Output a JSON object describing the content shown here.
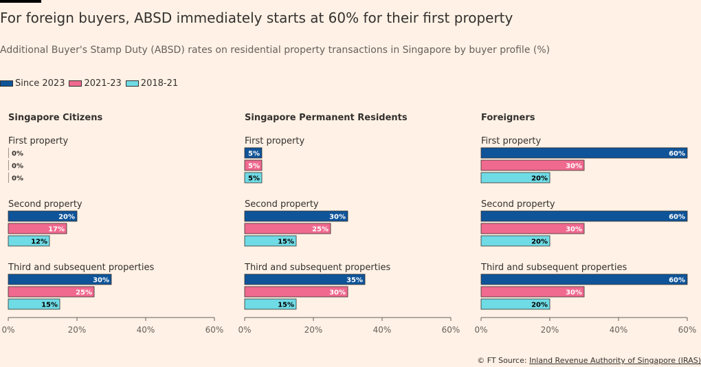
{
  "title": "For foreign buyers, ABSD immediately starts at 60% for their first property",
  "subtitle": "Additional Buyer's Stamp Duty (ABSD) rates on residential property transactions in Singapore by buyer profile (%)",
  "source": {
    "prefix": "© FT Source: ",
    "link_text": "Inland Revenue Authority of Singapore (IRAS)"
  },
  "colors": {
    "since_2023": "#0f5499",
    "y2021_23": "#f0698f",
    "y2018_21": "#6fdbe5",
    "axis": "#66605c",
    "background": "#fff1e5"
  },
  "chart_data": {
    "type": "bar",
    "orientation": "horizontal",
    "legend_position": "top-left",
    "xlim": [
      0,
      60
    ],
    "x_ticks": [
      0,
      20,
      40,
      60
    ],
    "x_tick_labels": [
      "0%",
      "20%",
      "40%",
      "60%"
    ],
    "series_names": [
      "Since 2023",
      "2021-23",
      "2018-21"
    ],
    "categories": [
      "First property",
      "Second property",
      "Third and subsequent properties"
    ],
    "panels": [
      {
        "title": "Singapore Citizens",
        "groups": [
          {
            "category": "First property",
            "values": [
              0,
              0,
              0
            ]
          },
          {
            "category": "Second property",
            "values": [
              20,
              17,
              12
            ]
          },
          {
            "category": "Third and subsequent properties",
            "values": [
              30,
              25,
              15
            ]
          }
        ]
      },
      {
        "title": "Singapore Permanent Residents",
        "groups": [
          {
            "category": "First property",
            "values": [
              5,
              5,
              5
            ]
          },
          {
            "category": "Second property",
            "values": [
              30,
              25,
              15
            ]
          },
          {
            "category": "Third and subsequent properties",
            "values": [
              35,
              30,
              15
            ]
          }
        ]
      },
      {
        "title": "Foreigners",
        "groups": [
          {
            "category": "First property",
            "values": [
              60,
              30,
              20
            ]
          },
          {
            "category": "Second property",
            "values": [
              60,
              30,
              20
            ]
          },
          {
            "category": "Third and subsequent properties",
            "values": [
              60,
              30,
              20
            ]
          }
        ]
      }
    ]
  }
}
